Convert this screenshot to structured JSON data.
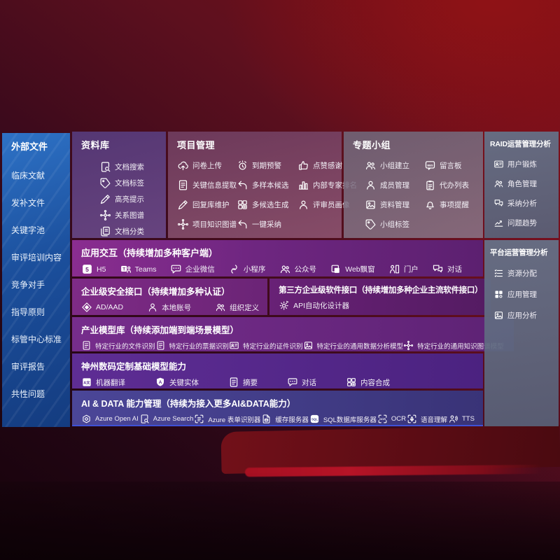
{
  "palette": {
    "background_red": "#6e0d16",
    "sidebar_blue": "#1f5aa8",
    "repository_purple": "#563a7a",
    "project_mauve": "#6d3e60",
    "group_gray": "#6e6174",
    "right_panel_slate": "#606b80",
    "row_purple": "#7c2b86",
    "row_indigo": "#46418f",
    "accent_blue_line": "#3f51d6"
  },
  "sidebar": {
    "title": "外部文件",
    "items": [
      "临床文献",
      "发补文件",
      "关键字池",
      "审评培训内容",
      "竞争对手",
      "指导原则",
      "标管中心标准",
      "审评报告",
      "共性问题"
    ]
  },
  "top_panels": [
    {
      "id": "repository",
      "title": "资料库",
      "layout": "list",
      "items": [
        {
          "icon": "doc-search-icon",
          "label": "文档搜索"
        },
        {
          "icon": "tag-icon",
          "label": "文档标签"
        },
        {
          "icon": "highlight-pen-icon",
          "label": "高亮提示"
        },
        {
          "icon": "relation-graph-icon",
          "label": "关系图谱"
        },
        {
          "icon": "doc-category-icon",
          "label": "文档分类"
        }
      ]
    },
    {
      "id": "project-management",
      "title": "项目管理",
      "layout": "grid3",
      "items": [
        {
          "icon": "cloud-upload-icon",
          "label": "问卷上传"
        },
        {
          "icon": "alarm-icon",
          "label": "到期预警"
        },
        {
          "icon": "thumbs-up-icon",
          "label": "点赞感谢"
        },
        {
          "icon": "doc-extract-icon",
          "label": "关键信息提取"
        },
        {
          "icon": "reply-arrow-icon",
          "label": "多样本候选"
        },
        {
          "icon": "ranking-chart-icon",
          "label": "内部专家排名"
        },
        {
          "icon": "edit-pen-icon",
          "label": "回复库维护"
        },
        {
          "icon": "generate-grid-icon",
          "label": "多候选生成"
        },
        {
          "icon": "person-icon",
          "label": "评审员画像"
        },
        {
          "icon": "knowledge-graph-icon",
          "label": "项目知识图谱"
        },
        {
          "icon": "adopt-arrow-icon",
          "label": "一键采纳"
        }
      ]
    },
    {
      "id": "topic-groups",
      "title": "专题小组",
      "layout": "grid2",
      "items": [
        {
          "icon": "group-icon",
          "label": "小组建立"
        },
        {
          "icon": "bbs-board-icon",
          "label": "留言板"
        },
        {
          "icon": "member-icon",
          "label": "成员管理"
        },
        {
          "icon": "todo-list-icon",
          "label": "代办列表"
        },
        {
          "icon": "album-icon",
          "label": "资料管理"
        },
        {
          "icon": "bell-icon",
          "label": "事项提醒"
        },
        {
          "icon": "tag-icon",
          "label": "小组标签"
        }
      ]
    }
  ],
  "middle_rows": [
    {
      "panels": [
        {
          "id": "app-interaction",
          "title": "应用交互（持续增加多种客户端）",
          "items": [
            {
              "icon": "h5-icon",
              "label": "H5"
            },
            {
              "icon": "teams-icon",
              "label": "Teams"
            },
            {
              "icon": "wechat-work-icon",
              "label": "企业微信"
            },
            {
              "icon": "miniprogram-icon",
              "label": "小程序"
            },
            {
              "icon": "official-account-icon",
              "label": "公众号"
            },
            {
              "icon": "web-popup-icon",
              "label": "Web飘窗"
            },
            {
              "icon": "portal-icon",
              "label": "门户"
            },
            {
              "icon": "dialog-icon",
              "label": "对话"
            }
          ]
        }
      ]
    },
    {
      "panels": [
        {
          "id": "enterprise-security-api",
          "title": "企业级安全接口（持续增加多种认证）",
          "items": [
            {
              "icon": "ad-shield-icon",
              "label": "AD/AAD"
            },
            {
              "icon": "local-account-icon",
              "label": "本地账号"
            },
            {
              "icon": "org-define-icon",
              "label": "组织定义"
            }
          ]
        },
        {
          "id": "third-party-api",
          "title": "第三方企业级软件接口（持续增加多种企业主流软件接口）",
          "items": [
            {
              "icon": "api-gear-icon",
              "label": "API自动化设计器"
            }
          ]
        }
      ]
    },
    {
      "panels": [
        {
          "id": "industry-model-library",
          "title": "产业模型库（持续添加端到端场景模型）",
          "items": [
            {
              "icon": "file-recognize-icon",
              "label": "特定行业的文件识别"
            },
            {
              "icon": "invoice-recognize-icon",
              "label": "特定行业的票据识别"
            },
            {
              "icon": "id-recognize-icon",
              "label": "特定行业的证件识别"
            },
            {
              "icon": "data-analysis-model-icon",
              "label": "特定行业的通用数据分析模型"
            },
            {
              "icon": "knowledge-graph-model-icon",
              "label": "特定行业的通用知识图谱模型"
            }
          ]
        }
      ]
    },
    {
      "panels": [
        {
          "id": "digital-china-base-models",
          "title": "神州数码定制基础模型能力",
          "items": [
            {
              "icon": "translate-icon",
              "label": "机器翻译"
            },
            {
              "icon": "entity-shield-icon",
              "label": "关键实体"
            },
            {
              "icon": "summary-doc-icon",
              "label": "摘要"
            },
            {
              "icon": "chat-bubble-icon",
              "label": "对话"
            },
            {
              "icon": "compose-grid-icon",
              "label": "内容合成"
            }
          ]
        }
      ]
    },
    {
      "panels": [
        {
          "id": "ai-data-capability",
          "title": "AI & DATA 能力管理（持续为接入更多AI&DATA能力）",
          "items": [
            {
              "icon": "openai-icon",
              "label": "Azure Open AI"
            },
            {
              "icon": "azure-search-icon",
              "label": "Azure Search"
            },
            {
              "icon": "form-recognizer-icon",
              "label": "Azure 表单识别器"
            },
            {
              "icon": "cache-server-icon",
              "label": "缓存服务器"
            },
            {
              "icon": "sql-db-icon",
              "label": "SQL数据库服务器"
            },
            {
              "icon": "ocr-icon",
              "label": "OCR"
            },
            {
              "icon": "speech-icon",
              "label": "语音理解"
            },
            {
              "icon": "tts-icon",
              "label": "TTS"
            }
          ]
        }
      ]
    }
  ],
  "right_panels": [
    {
      "id": "raid-operations-analysis",
      "title": "RAID运营管理分析",
      "items": [
        {
          "icon": "id-card-icon",
          "label": "用户锻炼"
        },
        {
          "icon": "role-people-icon",
          "label": "角色管理"
        },
        {
          "icon": "qa-chat-icon",
          "label": "采纳分析"
        },
        {
          "icon": "trend-chart-icon",
          "label": "问题趋势"
        }
      ]
    },
    {
      "id": "platform-operations-analysis",
      "title": "平台运营管理分析",
      "items": [
        {
          "icon": "allocation-list-icon",
          "label": "资源分配"
        },
        {
          "icon": "apps-grid-icon",
          "label": "应用管理"
        },
        {
          "icon": "app-analytics-icon",
          "label": "应用分析"
        }
      ]
    }
  ]
}
